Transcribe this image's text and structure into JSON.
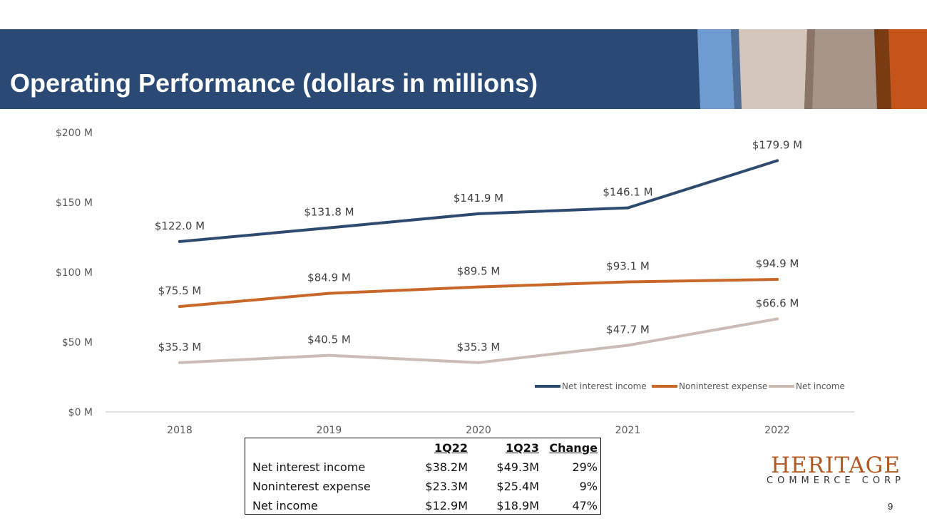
{
  "slide": {
    "title": "Operating Performance (dollars in millions)",
    "page_number": "9"
  },
  "colors": {
    "banner": "#2a4a75",
    "series_net_interest_income": "#2e4a6f",
    "series_noninterest_expense": "#c8672a",
    "series_net_income": "#cbbdb5",
    "stripe_light_blue": "#6e9bd0",
    "stripe_beige": "#d4c6bb",
    "stripe_taupe": "#a8958a",
    "stripe_brown": "#7a3a12",
    "stripe_orange": "#c5541a",
    "logo": "#b15a24"
  },
  "chart_data": {
    "type": "line",
    "title": "",
    "xlabel": "",
    "ylabel": "",
    "categories": [
      "2018",
      "2019",
      "2020",
      "2021",
      "2022"
    ],
    "y_ticks": [
      0,
      50,
      100,
      150,
      200
    ],
    "y_tick_labels": [
      "$0 M",
      "$50 M",
      "$100 M",
      "$150 M",
      "$200 M"
    ],
    "ylim": [
      0,
      200
    ],
    "grid": false,
    "legend_position": "bottom-right",
    "series": [
      {
        "name": "Net interest income",
        "values": [
          122.0,
          131.8,
          141.9,
          146.1,
          179.9
        ],
        "labels": [
          "$122.0 M",
          "$131.8 M",
          "$141.9 M",
          "$146.1 M",
          "$179.9 M"
        ]
      },
      {
        "name": "Noninterest expense",
        "values": [
          75.5,
          84.9,
          89.5,
          93.1,
          94.9
        ],
        "labels": [
          "$75.5 M",
          "$84.9 M",
          "$89.5 M",
          "$93.1 M",
          "$94.9 M"
        ]
      },
      {
        "name": "Net income",
        "values": [
          35.3,
          40.5,
          35.3,
          47.7,
          66.6
        ],
        "labels": [
          "$35.3 M",
          "$40.5 M",
          "$35.3 M",
          "$47.7 M",
          "$66.6 M"
        ]
      }
    ]
  },
  "summary_table": {
    "headers": [
      "",
      "1Q22",
      "1Q23",
      "Change"
    ],
    "rows": [
      [
        "Net interest income",
        "$38.2M",
        "$49.3M",
        "29%"
      ],
      [
        "Noninterest expense",
        "$23.3M",
        "$25.4M",
        "9%"
      ],
      [
        "Net income",
        "$12.9M",
        "$18.9M",
        "47%"
      ]
    ]
  },
  "logo": {
    "name": "HERITAGE",
    "subtitle": "COMMERCE CORP"
  }
}
